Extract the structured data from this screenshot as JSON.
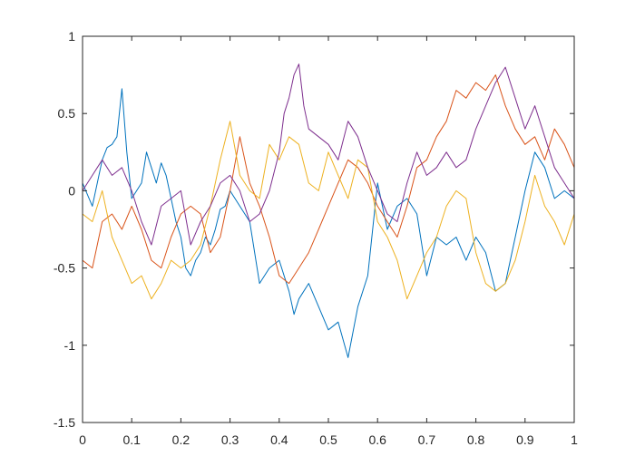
{
  "chart_data": {
    "type": "line",
    "title": "",
    "xlabel": "",
    "ylabel": "",
    "xlim": [
      0,
      1
    ],
    "ylim": [
      -1.5,
      1
    ],
    "x_ticks": [
      0,
      0.1,
      0.2,
      0.3,
      0.4,
      0.5,
      0.6,
      0.7,
      0.8,
      0.9,
      1
    ],
    "x_tick_labels": [
      "0",
      "0.1",
      "0.2",
      "0.3",
      "0.4",
      "0.5",
      "0.6",
      "0.7",
      "0.8",
      "0.9",
      "1"
    ],
    "y_ticks": [
      -1.5,
      -1,
      -0.5,
      0,
      0.5,
      1
    ],
    "y_tick_labels": [
      "-1.5",
      "-1",
      "-0.5",
      "0",
      "0.5",
      "1"
    ],
    "grid": false,
    "legend": "none",
    "series": [
      {
        "color": "#0072BD",
        "x": [
          0,
          0.02,
          0.04,
          0.05,
          0.06,
          0.07,
          0.08,
          0.09,
          0.1,
          0.11,
          0.12,
          0.13,
          0.14,
          0.15,
          0.16,
          0.17,
          0.18,
          0.19,
          0.2,
          0.21,
          0.22,
          0.23,
          0.24,
          0.25,
          0.26,
          0.27,
          0.28,
          0.29,
          0.3,
          0.31,
          0.32,
          0.34,
          0.36,
          0.38,
          0.4,
          0.42,
          0.43,
          0.44,
          0.46,
          0.48,
          0.5,
          0.52,
          0.54,
          0.56,
          0.58,
          0.6,
          0.62,
          0.64,
          0.66,
          0.68,
          0.7,
          0.72,
          0.74,
          0.76,
          0.78,
          0.8,
          0.82,
          0.84,
          0.86,
          0.88,
          0.9,
          0.92,
          0.94,
          0.96,
          0.98,
          1
        ],
        "y": [
          0.05,
          -0.1,
          0.2,
          0.28,
          0.3,
          0.35,
          0.66,
          0.25,
          -0.05,
          0.0,
          0.05,
          0.25,
          0.15,
          0.05,
          0.18,
          0.1,
          -0.05,
          -0.2,
          -0.3,
          -0.5,
          -0.55,
          -0.45,
          -0.4,
          -0.3,
          -0.35,
          -0.25,
          -0.12,
          -0.1,
          0.0,
          -0.05,
          -0.1,
          -0.2,
          -0.6,
          -0.5,
          -0.45,
          -0.65,
          -0.8,
          -0.7,
          -0.6,
          -0.75,
          -0.9,
          -0.85,
          -1.08,
          -0.75,
          -0.55,
          0.05,
          -0.25,
          -0.1,
          -0.05,
          -0.15,
          -0.55,
          -0.3,
          -0.35,
          -0.3,
          -0.45,
          -0.3,
          -0.4,
          -0.65,
          -0.6,
          -0.3,
          0.0,
          0.25,
          0.15,
          -0.05,
          0.0,
          -0.05
        ]
      },
      {
        "color": "#D95319",
        "x": [
          0,
          0.02,
          0.04,
          0.06,
          0.08,
          0.1,
          0.12,
          0.14,
          0.16,
          0.18,
          0.2,
          0.22,
          0.24,
          0.26,
          0.28,
          0.3,
          0.32,
          0.34,
          0.36,
          0.38,
          0.4,
          0.42,
          0.44,
          0.46,
          0.48,
          0.5,
          0.52,
          0.54,
          0.56,
          0.58,
          0.6,
          0.62,
          0.64,
          0.66,
          0.68,
          0.7,
          0.72,
          0.74,
          0.76,
          0.78,
          0.8,
          0.82,
          0.84,
          0.86,
          0.88,
          0.9,
          0.92,
          0.94,
          0.96,
          0.98,
          1
        ],
        "y": [
          -0.45,
          -0.5,
          -0.2,
          -0.15,
          -0.25,
          -0.1,
          -0.25,
          -0.45,
          -0.5,
          -0.3,
          -0.15,
          -0.1,
          -0.15,
          -0.4,
          -0.3,
          0.0,
          0.35,
          0.05,
          -0.1,
          -0.3,
          -0.55,
          -0.6,
          -0.5,
          -0.4,
          -0.25,
          -0.1,
          0.05,
          0.2,
          0.15,
          0.05,
          -0.1,
          -0.2,
          -0.3,
          -0.1,
          0.15,
          0.2,
          0.35,
          0.45,
          0.65,
          0.6,
          0.7,
          0.65,
          0.75,
          0.55,
          0.4,
          0.3,
          0.35,
          0.2,
          0.4,
          0.3,
          0.15
        ]
      },
      {
        "color": "#EDB120",
        "x": [
          0,
          0.02,
          0.04,
          0.06,
          0.08,
          0.1,
          0.12,
          0.14,
          0.16,
          0.18,
          0.2,
          0.22,
          0.24,
          0.26,
          0.28,
          0.3,
          0.32,
          0.34,
          0.36,
          0.38,
          0.4,
          0.42,
          0.44,
          0.46,
          0.48,
          0.5,
          0.52,
          0.54,
          0.56,
          0.58,
          0.6,
          0.62,
          0.64,
          0.66,
          0.68,
          0.7,
          0.72,
          0.74,
          0.76,
          0.78,
          0.8,
          0.82,
          0.84,
          0.86,
          0.88,
          0.9,
          0.92,
          0.94,
          0.96,
          0.98,
          1
        ],
        "y": [
          -0.15,
          -0.2,
          0.0,
          -0.3,
          -0.45,
          -0.6,
          -0.55,
          -0.7,
          -0.6,
          -0.45,
          -0.5,
          -0.45,
          -0.35,
          -0.1,
          0.2,
          0.45,
          0.1,
          0.0,
          -0.05,
          0.3,
          0.2,
          0.35,
          0.3,
          0.05,
          0.0,
          0.25,
          0.1,
          -0.05,
          0.2,
          0.15,
          -0.2,
          -0.3,
          -0.45,
          -0.7,
          -0.55,
          -0.4,
          -0.3,
          -0.1,
          0.0,
          -0.05,
          -0.4,
          -0.6,
          -0.65,
          -0.6,
          -0.45,
          -0.2,
          0.1,
          -0.1,
          -0.2,
          -0.35,
          -0.15
        ]
      },
      {
        "color": "#7E2F8E",
        "x": [
          0,
          0.02,
          0.04,
          0.06,
          0.08,
          0.1,
          0.12,
          0.14,
          0.16,
          0.18,
          0.2,
          0.22,
          0.24,
          0.26,
          0.28,
          0.3,
          0.32,
          0.34,
          0.36,
          0.38,
          0.4,
          0.41,
          0.42,
          0.43,
          0.44,
          0.45,
          0.46,
          0.48,
          0.5,
          0.52,
          0.54,
          0.56,
          0.58,
          0.6,
          0.62,
          0.64,
          0.66,
          0.68,
          0.7,
          0.72,
          0.74,
          0.76,
          0.78,
          0.8,
          0.82,
          0.84,
          0.86,
          0.88,
          0.9,
          0.92,
          0.94,
          0.96,
          0.98,
          1
        ],
        "y": [
          0.0,
          0.1,
          0.2,
          0.1,
          0.15,
          0.0,
          -0.2,
          -0.35,
          -0.1,
          -0.05,
          0.0,
          -0.35,
          -0.2,
          -0.1,
          0.05,
          0.1,
          0.0,
          -0.2,
          -0.15,
          0.0,
          0.25,
          0.5,
          0.6,
          0.75,
          0.82,
          0.55,
          0.4,
          0.35,
          0.3,
          0.2,
          0.45,
          0.35,
          0.15,
          0.0,
          -0.15,
          -0.2,
          0.05,
          0.25,
          0.1,
          0.15,
          0.25,
          0.15,
          0.2,
          0.4,
          0.55,
          0.7,
          0.8,
          0.6,
          0.4,
          0.55,
          0.35,
          0.15,
          0.05,
          -0.05
        ]
      }
    ]
  }
}
